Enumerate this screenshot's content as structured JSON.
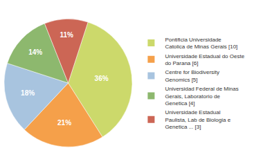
{
  "chart_data": {
    "type": "pie",
    "categories": [
      "Pontificia Universidade\nCatolica de Minas Gerais [10]",
      "Universidade Estadual do Oeste\ndo Parana [6]",
      "Centre for Biodiversity\nGenomics [5]",
      "Universidad Federal de Minas\nGerais, Laboratorio de\nGenetica [4]",
      "Universidade Estadual\nPaulista, Lab de Biologia e\nGenetica ... [3]"
    ],
    "values": [
      36,
      21,
      18,
      14,
      11
    ],
    "value_labels": [
      "36%",
      "21%",
      "18%",
      "14%",
      "11%"
    ],
    "colors": [
      "#ccd96b",
      "#f5a04a",
      "#a8c4df",
      "#8db86e",
      "#cc6655"
    ],
    "data_labels": true,
    "legend": "right"
  }
}
